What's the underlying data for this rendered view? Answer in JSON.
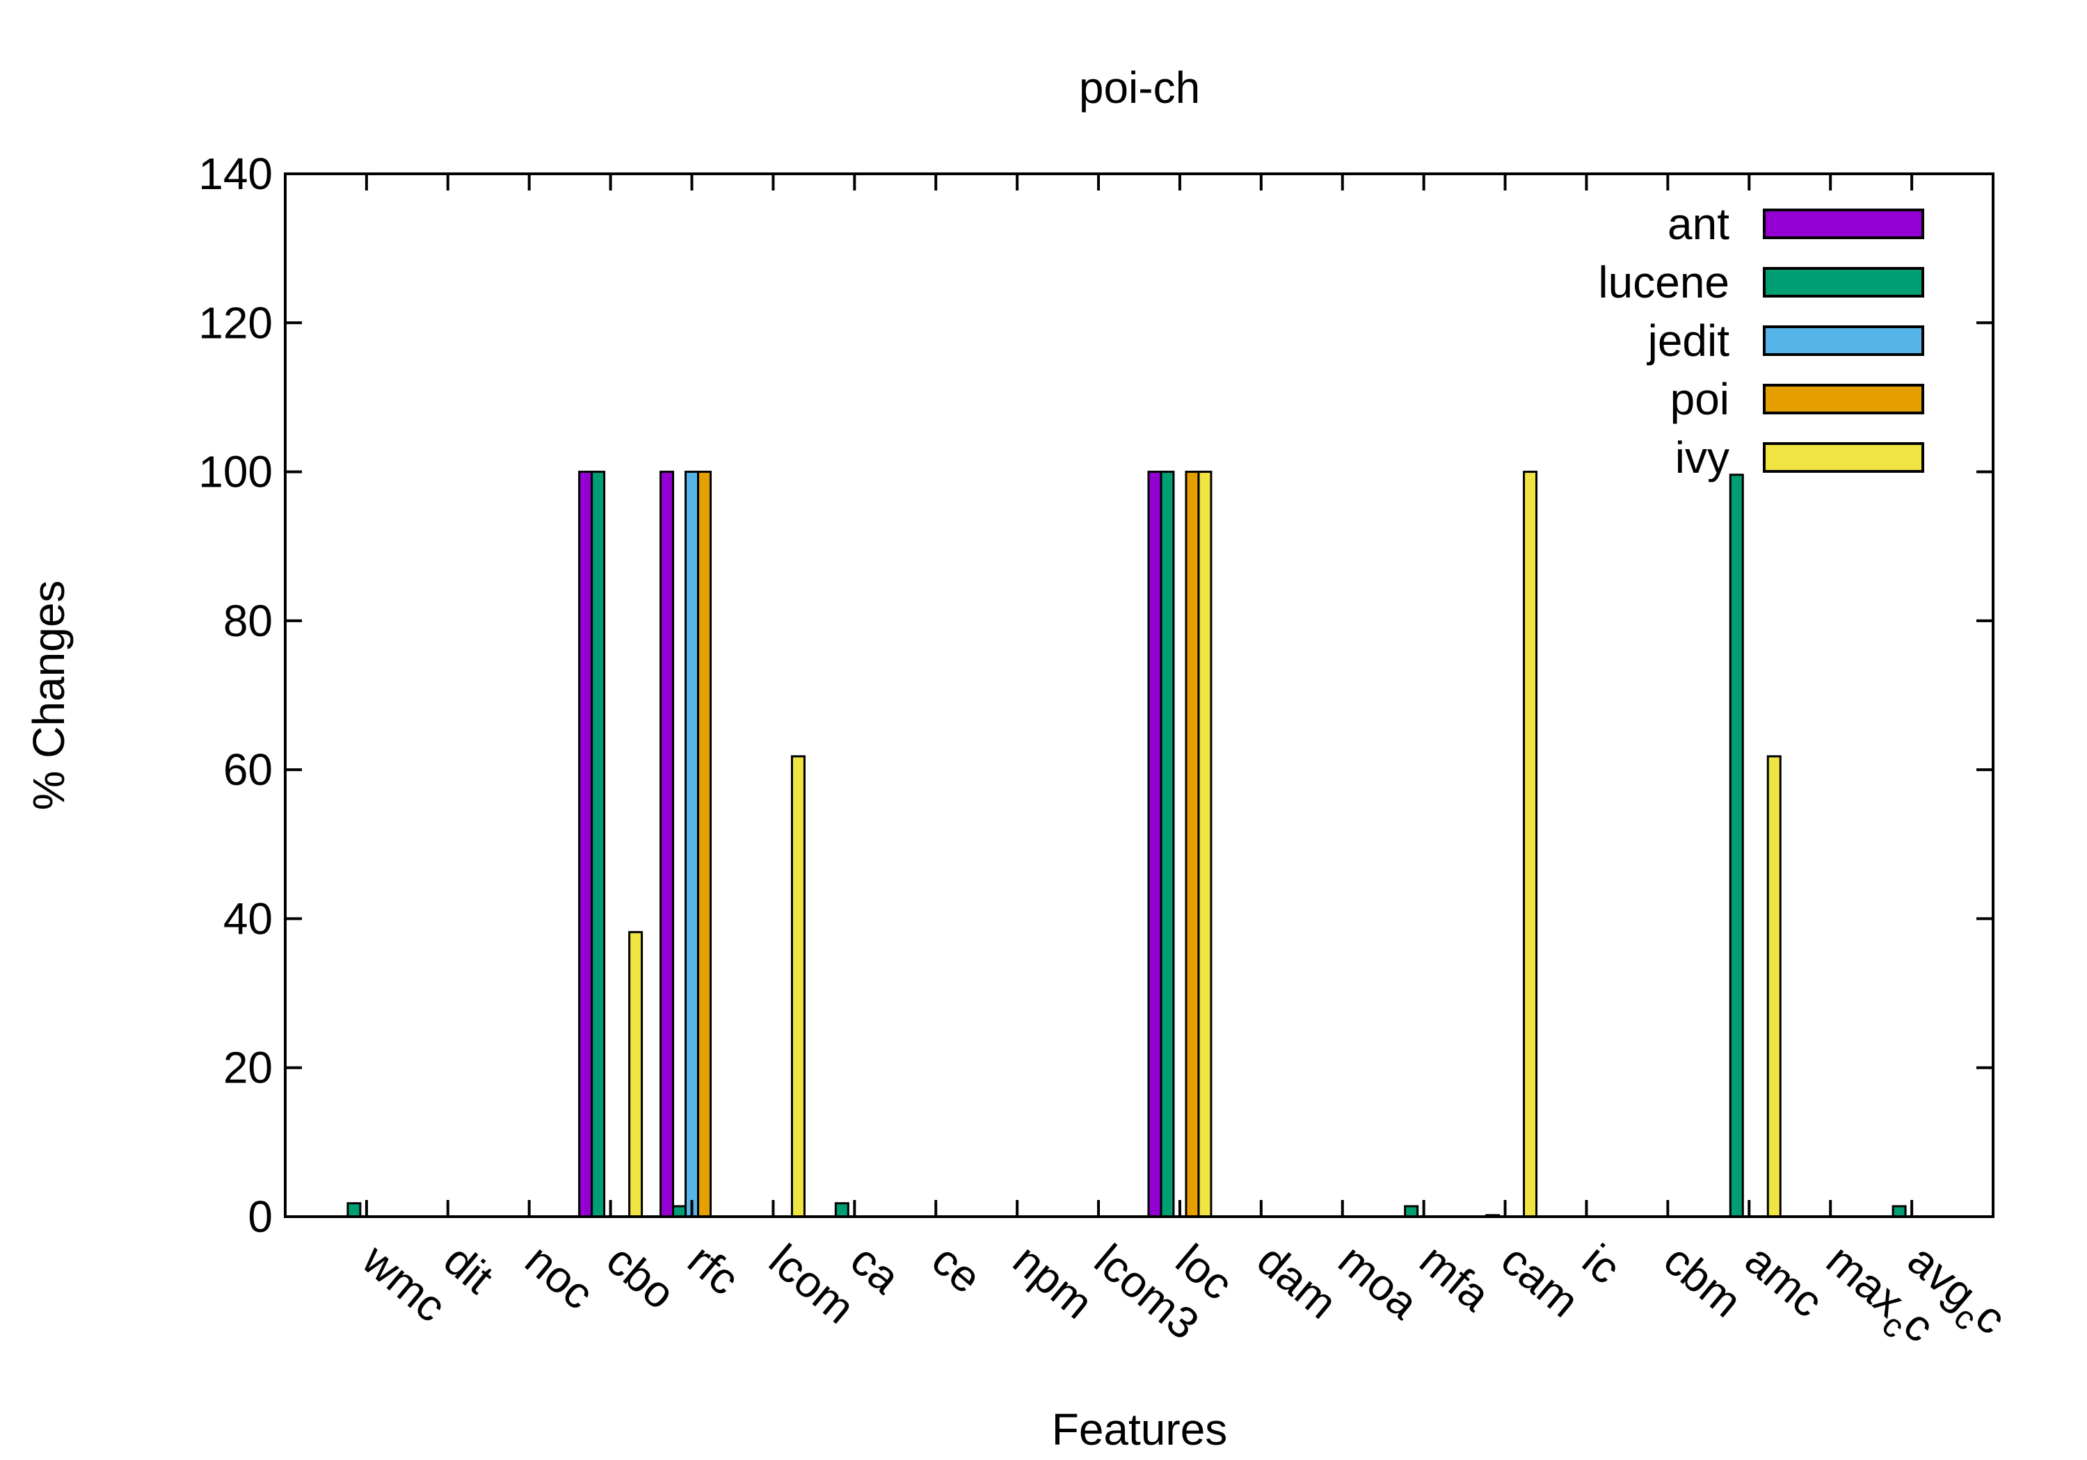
{
  "chart_data": {
    "type": "bar",
    "title": "poi-ch",
    "xlabel": "Features",
    "ylabel": "% Changes",
    "ylim": [
      0,
      140
    ],
    "yticks": [
      0,
      20,
      40,
      60,
      80,
      100,
      120,
      140
    ],
    "grid": false,
    "legend_position": "top-right",
    "categories": [
      "wmc",
      "dit",
      "noc",
      "cbo",
      "rfc",
      "lcom",
      "ca",
      "ce",
      "npm",
      "lcom3",
      "loc",
      "dam",
      "moa",
      "mfa",
      "cam",
      "ic",
      "cbm",
      "amc",
      "max_cc",
      "avg_cc"
    ],
    "category_display": [
      {
        "text": "wmc"
      },
      {
        "text": "dit"
      },
      {
        "text": "noc"
      },
      {
        "text": "cbo"
      },
      {
        "text": "rfc"
      },
      {
        "text": "lcom"
      },
      {
        "text": "ca"
      },
      {
        "text": "ce"
      },
      {
        "text": "npm"
      },
      {
        "text": "lcom3"
      },
      {
        "text": "loc"
      },
      {
        "text": "dam"
      },
      {
        "text": "moa"
      },
      {
        "text": "mfa"
      },
      {
        "text": "cam"
      },
      {
        "text": "ic"
      },
      {
        "text": "cbm"
      },
      {
        "text": "amc"
      },
      {
        "text": "max",
        "sub": "c",
        "tail": "c"
      },
      {
        "text": "avg",
        "sub": "c",
        "tail": "c"
      }
    ],
    "series": [
      {
        "name": "ant",
        "color": "#9400d3",
        "values": [
          0,
          0,
          0,
          100,
          100,
          0,
          0,
          0,
          0,
          0,
          100,
          0,
          0,
          0,
          0,
          0,
          0,
          0,
          0,
          0
        ]
      },
      {
        "name": "lucene",
        "color": "#009e73",
        "values": [
          1.8,
          0,
          0,
          100,
          1.4,
          0,
          1.8,
          0,
          0,
          0,
          100,
          0,
          0,
          1.4,
          0.2,
          0,
          0,
          99.6,
          0,
          1.4
        ]
      },
      {
        "name": "jedit",
        "color": "#56b4e9",
        "values": [
          0,
          0,
          0,
          0,
          100,
          0,
          0,
          0,
          0,
          0,
          0,
          0,
          0,
          0,
          0,
          0,
          0,
          0,
          0,
          0
        ]
      },
      {
        "name": "poi",
        "color": "#e69f00",
        "values": [
          0,
          0,
          0,
          0,
          100,
          0,
          0,
          0,
          0,
          0,
          100,
          0,
          0,
          0,
          0,
          0,
          0,
          0,
          0,
          0
        ]
      },
      {
        "name": "ivy",
        "color": "#f0e442",
        "values": [
          0,
          0,
          0,
          38.2,
          0,
          61.8,
          0,
          0,
          0,
          0,
          100,
          0,
          0,
          0,
          100,
          0,
          0,
          61.8,
          0,
          0
        ]
      }
    ]
  }
}
